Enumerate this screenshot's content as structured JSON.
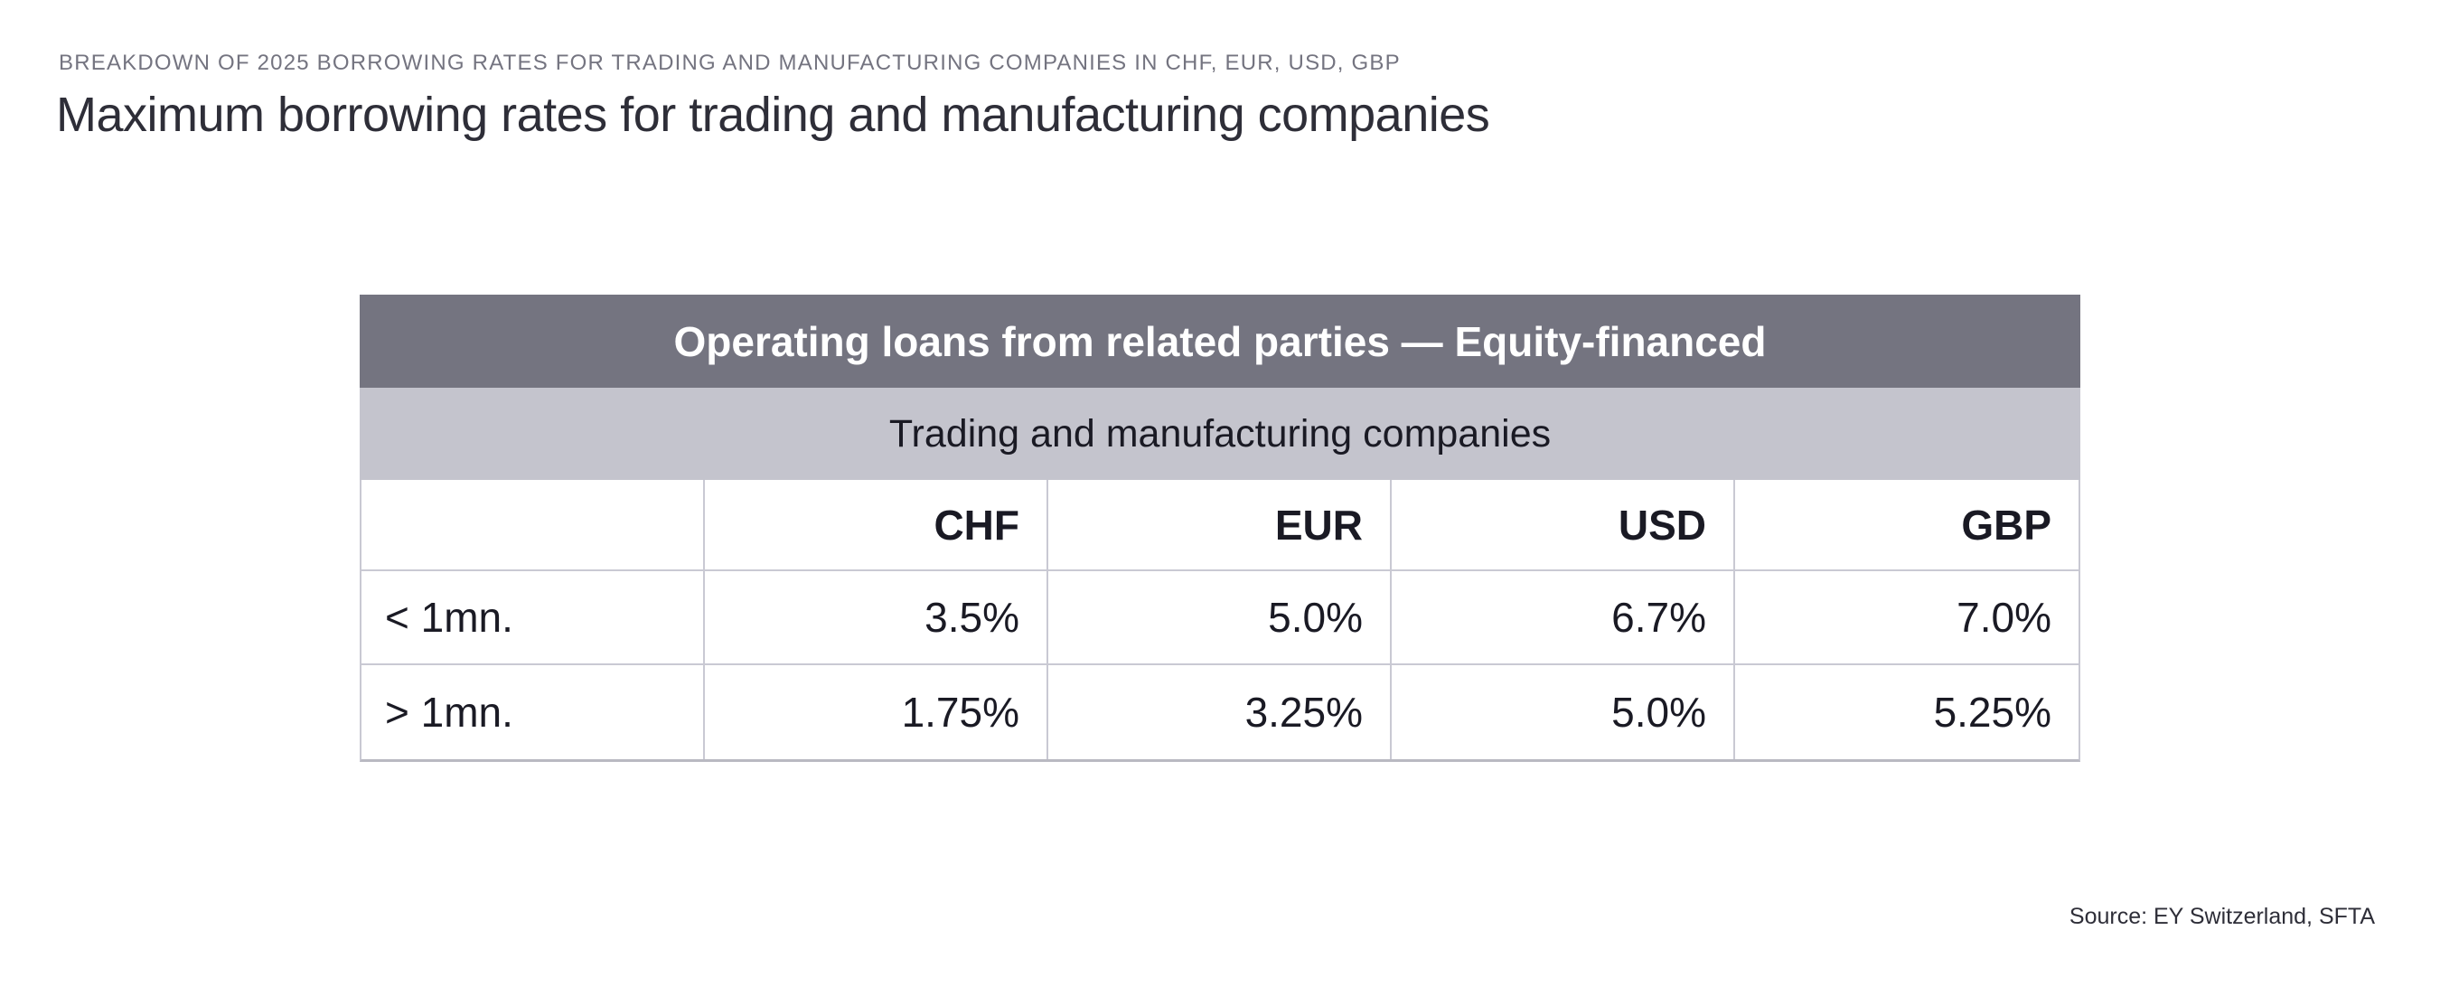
{
  "page": {
    "kicker": "BREAKDOWN OF 2025 BORROWING RATES FOR TRADING AND MANUFACTURING COMPANIES IN CHF, EUR, USD, GBP",
    "title": "Maximum borrowing rates for trading and manufacturing companies",
    "source": "Source: EY Switzerland, SFTA"
  },
  "table": {
    "header": "Operating loans from related parties — Equity-financed",
    "subheader": "Trading and manufacturing companies",
    "columns": [
      "",
      "CHF",
      "EUR",
      "USD",
      "GBP"
    ],
    "rows": [
      {
        "label": "< 1mn.",
        "values": [
          "3.5%",
          "5.0%",
          "6.7%",
          "7.0%"
        ]
      },
      {
        "label": "> 1mn.",
        "values": [
          "1.75%",
          "3.25%",
          "5.0%",
          "5.25%"
        ]
      }
    ]
  },
  "colors": {
    "header_bg": "#747480",
    "subheader_bg": "#c4c4cd",
    "border": "#c9c9d3",
    "border_bottom": "#b9b9c2",
    "title_text": "#2e2e38",
    "kicker_text": "#747480",
    "cell_text": "#1a1a24",
    "page_bg": "#ffffff"
  },
  "chart_data": {
    "type": "table",
    "title": "Maximum borrowing rates for trading and manufacturing companies",
    "subtitle": "BREAKDOWN OF 2025 BORROWING RATES FOR TRADING AND MANUFACTURING COMPANIES IN CHF, EUR, USD, GBP",
    "table_header": "Operating loans from related parties — Equity-financed",
    "table_subheader": "Trading and manufacturing companies",
    "columns": [
      "",
      "CHF",
      "EUR",
      "USD",
      "GBP"
    ],
    "rows": [
      [
        "< 1mn.",
        "3.5%",
        "5.0%",
        "6.7%",
        "7.0%"
      ],
      [
        "> 1mn.",
        "1.75%",
        "3.25%",
        "5.0%",
        "5.25%"
      ]
    ],
    "values_numeric": {
      "categories": [
        "CHF",
        "EUR",
        "USD",
        "GBP"
      ],
      "unit": "percent",
      "series": [
        {
          "name": "< 1mn.",
          "values": [
            3.5,
            5.0,
            6.7,
            7.0
          ]
        },
        {
          "name": "> 1mn.",
          "values": [
            1.75,
            3.25,
            5.0,
            5.25
          ]
        }
      ]
    },
    "source": "Source: EY Switzerland, SFTA"
  }
}
